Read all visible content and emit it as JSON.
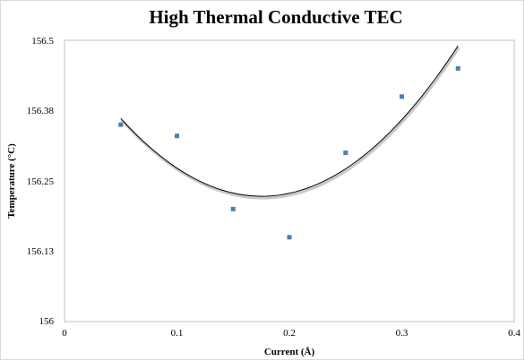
{
  "chart_data": {
    "type": "scatter",
    "title": "High Thermal Conductive TEC",
    "xlabel": "Current (Å)",
    "ylabel": "Temperature (°C)",
    "xlim": [
      0,
      0.4
    ],
    "ylim": [
      156,
      156.5
    ],
    "x_ticks": [
      "0",
      "0.1",
      "0.2",
      "0.3",
      "0.4"
    ],
    "y_ticks": [
      "156",
      "156.13",
      "156.25",
      "156.38",
      "156.5"
    ],
    "grid": false,
    "legend": "none",
    "series": [
      {
        "points": [
          {
            "x": 0.05,
            "y": 156.35
          },
          {
            "x": 0.1,
            "y": 156.33
          },
          {
            "x": 0.15,
            "y": 156.2
          },
          {
            "x": 0.2,
            "y": 156.15
          },
          {
            "x": 0.25,
            "y": 156.3
          },
          {
            "x": 0.3,
            "y": 156.4
          },
          {
            "x": 0.35,
            "y": 156.45
          }
        ],
        "marker": "square",
        "color": "#4a7ebb"
      }
    ],
    "trendline": {
      "type": "polynomial",
      "order": 2,
      "x_range": [
        0.05,
        0.35
      ],
      "points": [
        {
          "x": 0.05,
          "y": 156.375
        },
        {
          "x": 0.1,
          "y": 156.261
        },
        {
          "x": 0.15,
          "y": 156.212
        },
        {
          "x": 0.2,
          "y": 156.226
        },
        {
          "x": 0.25,
          "y": 156.287
        },
        {
          "x": 0.3,
          "y": 156.376
        },
        {
          "x": 0.35,
          "y": 156.474
        }
      ],
      "color": "#000000"
    }
  },
  "colors": {
    "marker": "#4a7ebb",
    "trendline": "#000000",
    "trendline_shadow": "#c8c8c8",
    "frame": "#d9d9d9"
  }
}
